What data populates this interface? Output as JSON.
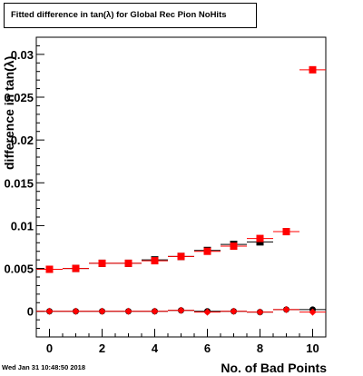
{
  "title": "Fitted difference in tan(λ) for Global Rec Pion NoHits",
  "timestamp": "Wed Jan 31 10:48:50 2018",
  "chart_data": {
    "type": "scatter",
    "title": "Fitted difference in tan(λ) for Global Rec Pion NoHits",
    "xlabel": "No. of Bad Points",
    "ylabel": "difference in tan(λ)",
    "xlim": [
      -0.5,
      10.5
    ],
    "ylim": [
      -0.003,
      0.032
    ],
    "x_ticks": [
      "0",
      "2",
      "4",
      "6",
      "8",
      "10"
    ],
    "y_ticks": [
      "0",
      "0.005",
      "0.01",
      "0.015",
      "0.02",
      "0.025",
      "0.03"
    ],
    "y_tick_values": [
      0,
      0.005,
      0.01,
      0.015,
      0.02,
      0.025,
      0.03
    ],
    "grid": false,
    "legend": false,
    "series": [
      {
        "marker": "square",
        "color": "#000000",
        "x": [
          0,
          1,
          2,
          3,
          4,
          5,
          6,
          7,
          8,
          9
        ],
        "y": [
          0.0049,
          0.005,
          0.0056,
          0.0056,
          0.006,
          0.0064,
          0.0071,
          0.0078,
          0.0081,
          0.0093
        ]
      },
      {
        "marker": "square",
        "color": "#ff0000",
        "x": [
          0,
          1,
          2,
          3,
          4,
          5,
          6,
          7,
          8,
          9,
          10
        ],
        "y": [
          0.0049,
          0.005,
          0.0056,
          0.0056,
          0.0059,
          0.0064,
          0.007,
          0.0076,
          0.0085,
          0.0093,
          0.0282
        ]
      },
      {
        "marker": "circle",
        "color": "#000000",
        "x": [
          0,
          1,
          2,
          3,
          4,
          5,
          6,
          7,
          8,
          9,
          10
        ],
        "y": [
          0.0,
          0.0,
          0.0,
          0.0,
          0.0,
          0.0001,
          0.0,
          0.0,
          -0.0001,
          0.0002,
          0.0002
        ]
      },
      {
        "marker": "diamond",
        "color": "#ff0000",
        "x": [
          0,
          1,
          2,
          3,
          4,
          5,
          6,
          7,
          8,
          9,
          10
        ],
        "y": [
          0.0,
          0.0,
          0.0,
          0.0,
          0.0,
          0.0001,
          -0.0001,
          0.0,
          -0.0001,
          0.0002,
          -0.0001
        ]
      }
    ]
  }
}
